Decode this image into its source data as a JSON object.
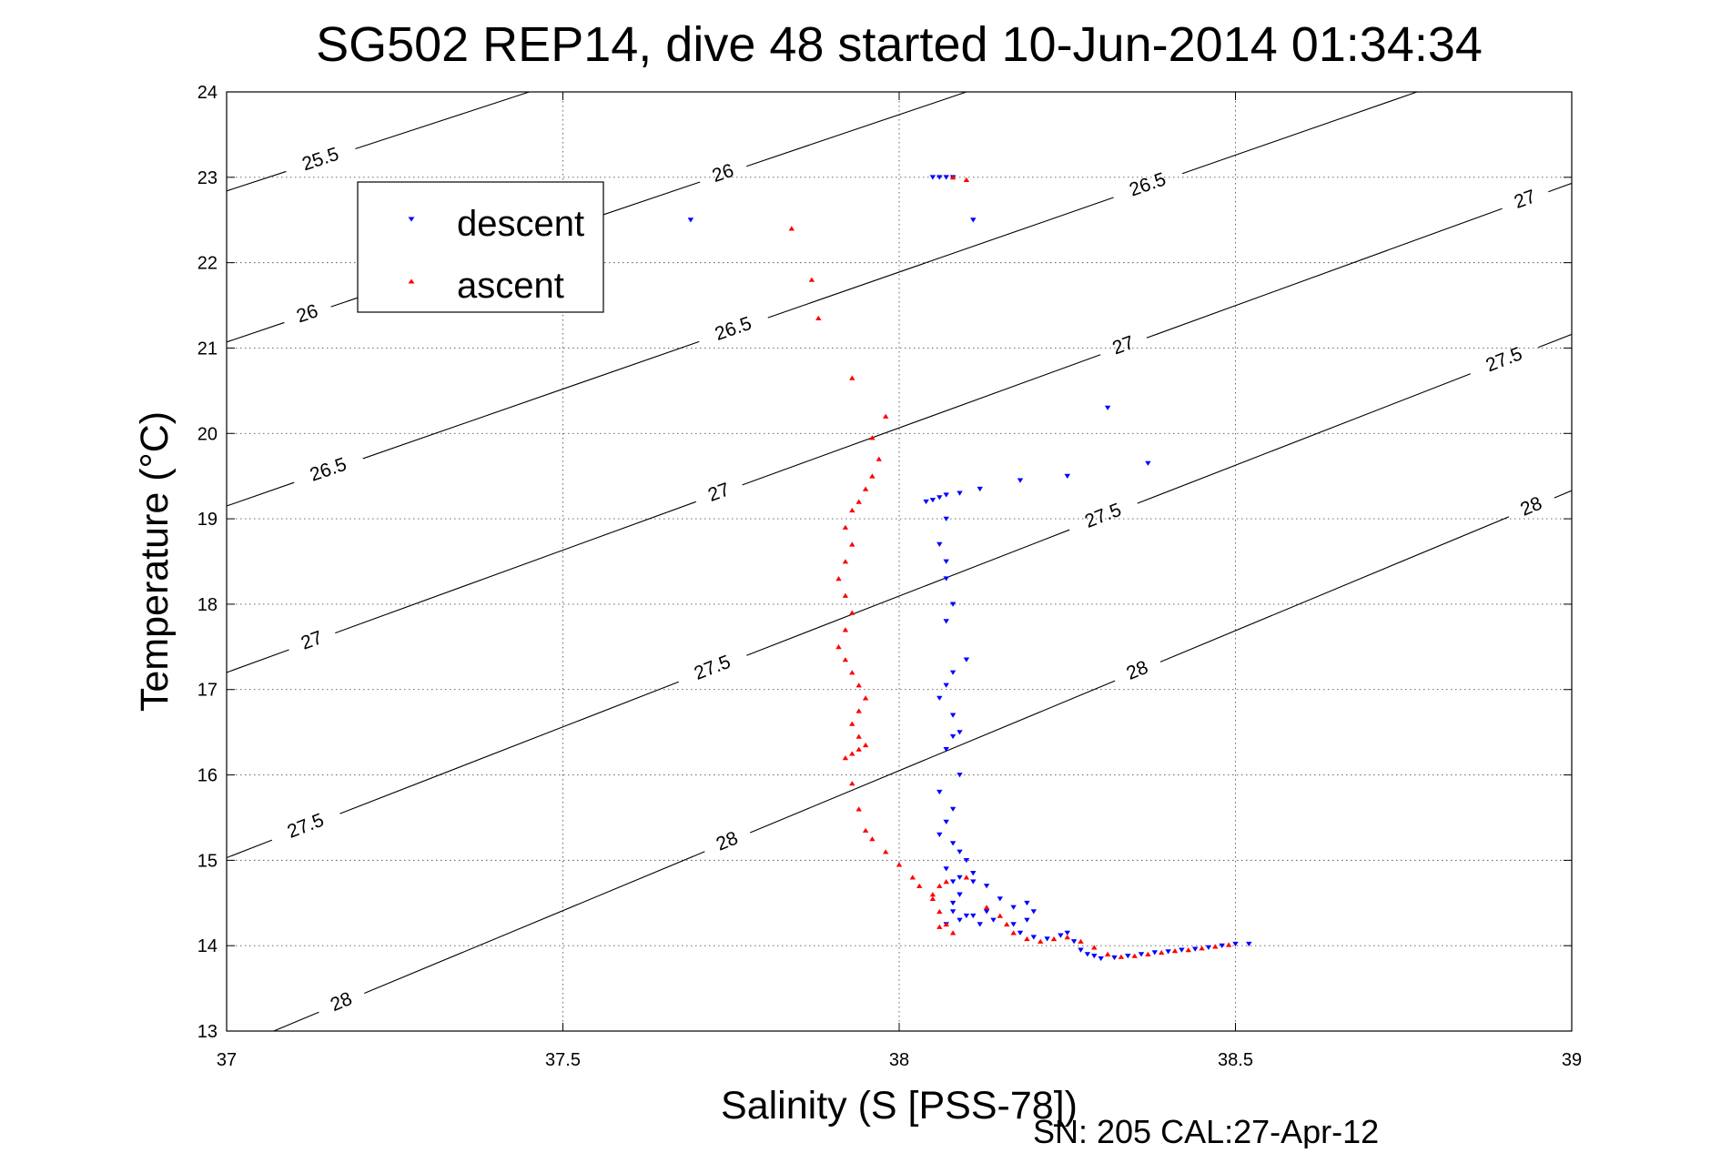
{
  "chart_data": {
    "type": "scatter",
    "title": "SG502 REP14, dive 48 started 10-Jun-2014 01:34:34",
    "xlabel": "Salinity (S [PSS-78])",
    "ylabel": "Temperature (°C)",
    "xlim": [
      37,
      39
    ],
    "ylim": [
      13,
      24
    ],
    "xticks": [
      37,
      37.5,
      38,
      38.5,
      39
    ],
    "xtick_labels": [
      "37",
      "37.5",
      "38",
      "38.5",
      "39"
    ],
    "yticks": [
      13,
      14,
      15,
      16,
      17,
      18,
      19,
      20,
      21,
      22,
      23,
      24
    ],
    "ytick_labels": [
      "13",
      "14",
      "15",
      "16",
      "17",
      "18",
      "19",
      "20",
      "21",
      "22",
      "23",
      "24"
    ],
    "grid": true,
    "legend_position": "top-left",
    "footer": "SN: 205  CAL:27-Apr-12",
    "isopycnals": [
      {
        "label": "25.5",
        "points": [
          [
            37,
            22.84
          ],
          [
            37.45,
            24.0
          ]
        ],
        "label_at": [
          [
            37.14,
            23.2
          ]
        ]
      },
      {
        "label": "26",
        "points": [
          [
            37,
            21.07
          ],
          [
            38.1,
            24.0
          ]
        ],
        "label_at": [
          [
            37.12,
            21.4
          ],
          [
            37.74,
            23.0
          ]
        ]
      },
      {
        "label": "26.5",
        "points": [
          [
            37,
            19.15
          ],
          [
            38.77,
            24.0
          ]
        ],
        "label_at": [
          [
            37.15,
            19.6
          ],
          [
            37.75,
            21.3
          ],
          [
            38.37,
            22.9
          ]
        ]
      },
      {
        "label": "27",
        "points": [
          [
            37,
            17.2
          ],
          [
            39,
            22.93
          ]
        ],
        "label_at": [
          [
            37.13,
            17.5
          ],
          [
            37.73,
            19.35
          ],
          [
            38.33,
            21.1
          ],
          [
            38.93,
            22.75
          ]
        ]
      },
      {
        "label": "27.5",
        "points": [
          [
            37,
            15.03
          ],
          [
            39,
            21.16
          ]
        ],
        "label_at": [
          [
            37.12,
            15.35
          ],
          [
            37.72,
            17.3
          ],
          [
            38.3,
            19.1
          ],
          [
            38.9,
            20.85
          ]
        ]
      },
      {
        "label": "28",
        "points": [
          [
            37.07,
            13.0
          ],
          [
            39,
            19.33
          ]
        ],
        "label_at": [
          [
            37.17,
            13.35
          ],
          [
            37.74,
            15.3
          ],
          [
            38.35,
            17.3
          ],
          [
            38.95,
            18.95
          ]
        ]
      }
    ],
    "series": [
      {
        "name": "descent",
        "color": "#0000ff",
        "marker": "triangle-down",
        "x": [
          37.69,
          38.05,
          38.06,
          38.07,
          38.08,
          38.11,
          38.31,
          38.37,
          38.25,
          38.18,
          38.12,
          38.09,
          38.07,
          38.06,
          38.05,
          38.04,
          38.07,
          38.06,
          38.07,
          38.07,
          38.08,
          38.07,
          38.1,
          38.08,
          38.07,
          38.06,
          38.08,
          38.09,
          38.08,
          38.07,
          38.09,
          38.06,
          38.08,
          38.07,
          38.06,
          38.08,
          38.09,
          38.07,
          38.08,
          38.09,
          38.11,
          38.1,
          38.09,
          38.08,
          38.07,
          38.09,
          38.11,
          38.13,
          38.14,
          38.12,
          38.1,
          38.08,
          38.09,
          38.11,
          38.13,
          38.15,
          38.17,
          38.19,
          38.2,
          38.19,
          38.17,
          38.18,
          38.2,
          38.22,
          38.24,
          38.25,
          38.26,
          38.27,
          38.28,
          38.29,
          38.3,
          38.32,
          38.34,
          38.36,
          38.38,
          38.4,
          38.42,
          38.44,
          38.46,
          38.48,
          38.5,
          38.52
        ],
        "y": [
          22.5,
          23.0,
          23.0,
          23.0,
          23.0,
          22.5,
          20.3,
          19.65,
          19.5,
          19.45,
          19.35,
          19.3,
          19.28,
          19.25,
          19.22,
          19.2,
          19.0,
          18.7,
          18.5,
          18.3,
          18.0,
          17.8,
          17.35,
          17.2,
          17.05,
          16.9,
          16.7,
          16.5,
          16.45,
          16.3,
          16.0,
          15.8,
          15.6,
          15.45,
          15.3,
          15.2,
          15.1,
          14.9,
          14.75,
          14.8,
          14.85,
          15.0,
          14.6,
          14.4,
          14.25,
          14.3,
          14.35,
          14.4,
          14.3,
          14.25,
          14.35,
          14.5,
          14.6,
          14.75,
          14.7,
          14.55,
          14.45,
          14.5,
          14.4,
          14.3,
          14.25,
          14.15,
          14.1,
          14.08,
          14.12,
          14.15,
          14.05,
          13.95,
          13.9,
          13.88,
          13.85,
          13.86,
          13.88,
          13.9,
          13.92,
          13.93,
          13.95,
          13.96,
          13.98,
          14.0,
          14.02,
          14.02
        ]
      },
      {
        "name": "ascent",
        "color": "#ff0000",
        "marker": "triangle-up",
        "x": [
          38.08,
          38.1,
          37.84,
          37.87,
          37.88,
          37.93,
          37.98,
          37.96,
          37.97,
          37.96,
          37.95,
          37.94,
          37.93,
          37.92,
          37.93,
          37.92,
          37.91,
          37.92,
          37.93,
          37.92,
          37.91,
          37.92,
          37.93,
          37.94,
          37.95,
          37.94,
          37.93,
          37.94,
          37.95,
          37.94,
          37.93,
          37.92,
          37.93,
          37.94,
          37.95,
          37.96,
          37.98,
          38.0,
          38.02,
          38.03,
          38.05,
          38.06,
          38.07,
          38.08,
          38.06,
          38.05,
          38.06,
          38.07,
          38.1,
          38.13,
          38.15,
          38.16,
          38.17,
          38.19,
          38.21,
          38.23,
          38.25,
          38.27,
          38.29,
          38.31,
          38.33,
          38.35,
          38.37,
          38.39,
          38.41,
          38.43,
          38.45,
          38.47,
          38.49
        ],
        "y": [
          23.0,
          22.97,
          22.4,
          21.8,
          21.35,
          20.65,
          20.2,
          19.95,
          19.7,
          19.5,
          19.35,
          19.2,
          19.1,
          18.9,
          18.7,
          18.5,
          18.3,
          18.1,
          17.9,
          17.7,
          17.5,
          17.35,
          17.2,
          17.05,
          16.9,
          16.75,
          16.6,
          16.45,
          16.35,
          16.3,
          16.25,
          16.2,
          15.9,
          15.6,
          15.35,
          15.25,
          15.1,
          14.95,
          14.8,
          14.7,
          14.6,
          14.4,
          14.25,
          14.15,
          14.22,
          14.55,
          14.7,
          14.75,
          14.8,
          14.45,
          14.35,
          14.25,
          14.15,
          14.08,
          14.05,
          14.08,
          14.1,
          14.05,
          13.98,
          13.9,
          13.87,
          13.88,
          13.9,
          13.92,
          13.94,
          13.95,
          13.97,
          13.99,
          14.01
        ]
      }
    ]
  }
}
